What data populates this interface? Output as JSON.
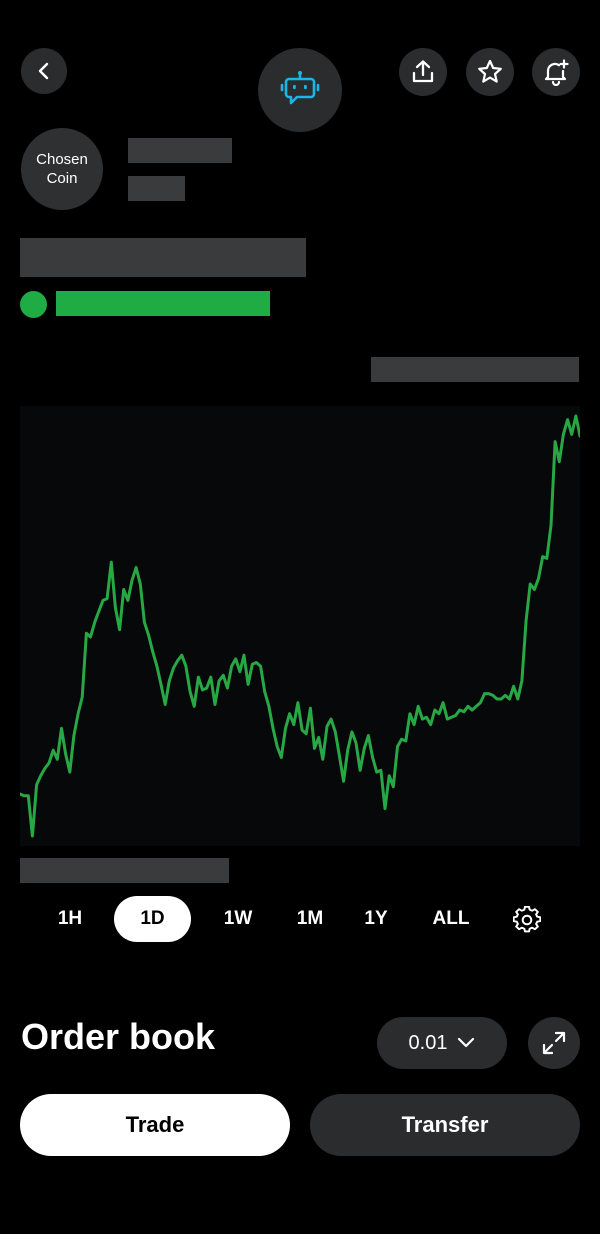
{
  "header": {
    "back_icon": "chevron-left-icon",
    "assistant_icon": "robot-chat-icon",
    "share_icon": "share-upload-icon",
    "favorite_icon": "star-icon",
    "alert_icon": "bell-plus-icon"
  },
  "coin": {
    "line1": "Chosen",
    "line2": "Coin"
  },
  "status": {
    "color": "#1fac45"
  },
  "timeframes": [
    "1H",
    "1D",
    "1W",
    "1M",
    "1Y",
    "ALL"
  ],
  "active_timeframe": "1D",
  "order_book": {
    "title": "Order book",
    "tick_size": "0.01"
  },
  "actions": {
    "trade": "Trade",
    "transfer": "Transfer"
  },
  "colors": {
    "accent_green": "#1fac45",
    "chart_line": "#27a844",
    "assistant_blue": "#1ab6e8"
  },
  "chart_data": {
    "type": "line",
    "series": [
      {
        "values": [
          28,
          27,
          27,
          5,
          33,
          38,
          42,
          45,
          52,
          47,
          64,
          50,
          40,
          60,
          72,
          81,
          116,
          114,
          122,
          128,
          134,
          135,
          155,
          130,
          118,
          140,
          134,
          145,
          152,
          143,
          122,
          115,
          106,
          98,
          88,
          77,
          90,
          97,
          101,
          104,
          98,
          84,
          76,
          92,
          85,
          86,
          92,
          77,
          90,
          93,
          86,
          98,
          102,
          95,
          104,
          88,
          99,
          100,
          98,
          84,
          76,
          64,
          54,
          48,
          64,
          72,
          66,
          78,
          63,
          61,
          75,
          53,
          59,
          47,
          65,
          69,
          62,
          49,
          35,
          52,
          62,
          56,
          41,
          53,
          60,
          48,
          40,
          41,
          20,
          38,
          32,
          54,
          58,
          57,
          72,
          66,
          76,
          69,
          70,
          66,
          74,
          72,
          78,
          69,
          70,
          71,
          74,
          73,
          76,
          74,
          76,
          78,
          83,
          83,
          82,
          80,
          80,
          82,
          80,
          87,
          80,
          90,
          123,
          143,
          140,
          146,
          158,
          157,
          175,
          221,
          210,
          225,
          233,
          225,
          235,
          224
        ]
      }
    ]
  }
}
